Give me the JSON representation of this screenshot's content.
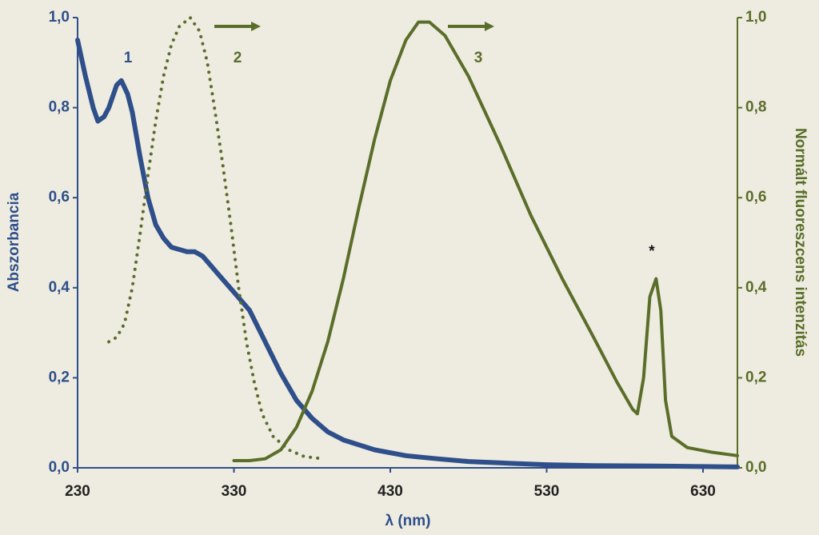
{
  "chart_data": {
    "type": "line",
    "xlabel": "λ (nm)",
    "ylabel": "Abszorbancia",
    "y2label": "Normált fluoreszcens intenzitás",
    "xlim": [
      230,
      652
    ],
    "xticks": [
      230,
      330,
      430,
      530,
      630
    ],
    "ylim": [
      0,
      1
    ],
    "yticks": [
      {
        "value": 0,
        "label": "0,0"
      },
      {
        "value": 0.2,
        "label": "0,2"
      },
      {
        "value": 0.4,
        "label": "0,4"
      },
      {
        "value": 0.6,
        "label": "0,6"
      },
      {
        "value": 0.8,
        "label": "0,8"
      },
      {
        "value": 1,
        "label": "1,0"
      }
    ],
    "y2lim": [
      0,
      1
    ],
    "y2ticks": [
      {
        "value": 0,
        "label": "0,0"
      },
      {
        "value": 0.2,
        "label": "0,2"
      },
      {
        "value": 0.4,
        "label": "0,4"
      },
      {
        "value": 0.6,
        "label": "0,6"
      },
      {
        "value": 0.8,
        "label": "0,8"
      },
      {
        "value": 1,
        "label": "1,0"
      }
    ],
    "series": [
      {
        "name": "1",
        "color": "#2e4f8a",
        "style": "solid",
        "x": [
          230,
          235,
          240,
          243,
          247,
          250,
          255,
          258,
          262,
          265,
          270,
          275,
          280,
          285,
          290,
          300,
          305,
          310,
          315,
          320,
          330,
          340,
          350,
          360,
          370,
          380,
          390,
          400,
          420,
          440,
          460,
          480,
          500,
          530,
          560,
          600,
          652
        ],
        "values": [
          0.95,
          0.87,
          0.8,
          0.77,
          0.78,
          0.8,
          0.85,
          0.86,
          0.83,
          0.79,
          0.69,
          0.6,
          0.54,
          0.51,
          0.49,
          0.48,
          0.48,
          0.47,
          0.45,
          0.43,
          0.39,
          0.35,
          0.28,
          0.21,
          0.15,
          0.11,
          0.08,
          0.062,
          0.04,
          0.027,
          0.02,
          0.014,
          0.011,
          0.007,
          0.005,
          0.004,
          0.002
        ]
      },
      {
        "name": "2",
        "color": "#5a6e2a",
        "style": "dotted",
        "axis": "y2",
        "x": [
          250,
          255,
          260,
          265,
          270,
          275,
          280,
          285,
          290,
          295,
          302,
          308,
          313,
          318,
          323,
          328,
          333,
          338,
          343,
          348,
          355,
          365,
          375,
          387
        ],
        "values": [
          0.28,
          0.29,
          0.32,
          0.4,
          0.52,
          0.65,
          0.77,
          0.87,
          0.94,
          0.98,
          1.0,
          0.97,
          0.9,
          0.79,
          0.67,
          0.54,
          0.4,
          0.28,
          0.19,
          0.12,
          0.07,
          0.04,
          0.025,
          0.02
        ]
      },
      {
        "name": "3",
        "color": "#5a6e2a",
        "style": "solid",
        "axis": "y2",
        "x": [
          330,
          340,
          350,
          360,
          370,
          380,
          390,
          400,
          410,
          420,
          430,
          440,
          448,
          455,
          465,
          480,
          500,
          520,
          540,
          560,
          575,
          585,
          588,
          592,
          596,
          600,
          603,
          606,
          610,
          620,
          635,
          652
        ],
        "values": [
          0.016,
          0.016,
          0.02,
          0.04,
          0.09,
          0.17,
          0.28,
          0.42,
          0.58,
          0.73,
          0.86,
          0.95,
          0.99,
          0.99,
          0.96,
          0.87,
          0.72,
          0.56,
          0.42,
          0.29,
          0.19,
          0.13,
          0.12,
          0.2,
          0.38,
          0.42,
          0.35,
          0.15,
          0.07,
          0.045,
          0.035,
          0.027
        ]
      }
    ],
    "annotations": [
      "*"
    ]
  }
}
